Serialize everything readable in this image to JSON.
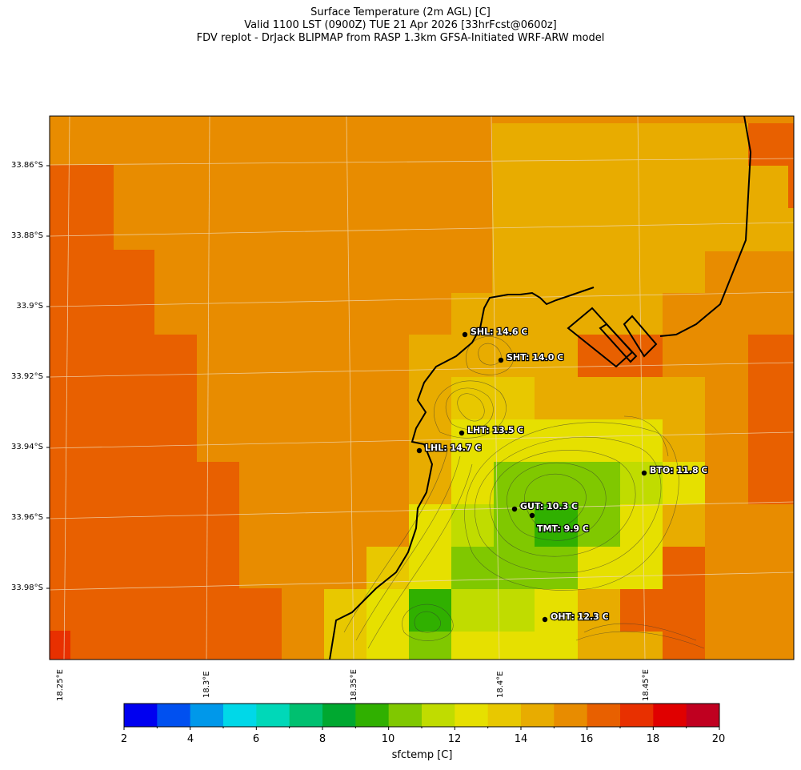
{
  "title": {
    "line1": "Surface Temperature (2m AGL) [C]",
    "line2": "Valid 1100 LST (0900Z) TUE 21 Apr 2026 [33hrFcst@0600z]",
    "line3": "FDV replot - DrJack BLIPMAP from RASP 1.3km GFSA-Initiated WRF-ARW model"
  },
  "axes": {
    "lat_labels": [
      "33.86°S",
      "33.88°S",
      "33.9°S",
      "33.92°S",
      "33.94°S",
      "33.96°S",
      "33.98°S"
    ],
    "lon_labels": [
      "18.25°E",
      "18.3°E",
      "18.35°E",
      "18.4°E",
      "18.45°E"
    ]
  },
  "stations": [
    {
      "id": "SHL",
      "label": "SHL: 14.6 C",
      "temp_c": 14.6
    },
    {
      "id": "SHT",
      "label": "SHT: 14.0 C",
      "temp_c": 14.0
    },
    {
      "id": "LHT",
      "label": "LHT: 13.5 C",
      "temp_c": 13.5
    },
    {
      "id": "LHL",
      "label": "LHL: 14.7 C",
      "temp_c": 14.7
    },
    {
      "id": "BTO",
      "label": "BTO: 11.8 C",
      "temp_c": 11.8
    },
    {
      "id": "GUT",
      "label": "GUT: 10.3 C",
      "temp_c": 10.3
    },
    {
      "id": "TMT",
      "label": "TMT: 9.9 C",
      "temp_c": 9.9
    },
    {
      "id": "OHT",
      "label": "OHT: 12.3 C",
      "temp_c": 12.3
    }
  ],
  "colorbar": {
    "label": "sfctemp [C]",
    "min": 2,
    "max": 20,
    "tick_labels": [
      "2",
      "4",
      "6",
      "8",
      "10",
      "12",
      "14",
      "16",
      "18",
      "20"
    ],
    "colors": [
      "#0000f0",
      "#0050f0",
      "#0098ea",
      "#00d8e8",
      "#00d8b8",
      "#00c070",
      "#00a830",
      "#30b000",
      "#80c800",
      "#c0dc00",
      "#e6e000",
      "#e8c800",
      "#e8ac00",
      "#e88c00",
      "#e86000",
      "#e83000",
      "#e00000",
      "#c00020"
    ]
  },
  "colors": {
    "t13": "#e8ac00",
    "t14": "#e8c800",
    "t15": "#e88c00",
    "t16": "#e86000",
    "t17": "#e83000",
    "t12": "#e6e000",
    "t11": "#c0dc00",
    "t10": "#80c800",
    "t9": "#30b000"
  }
}
